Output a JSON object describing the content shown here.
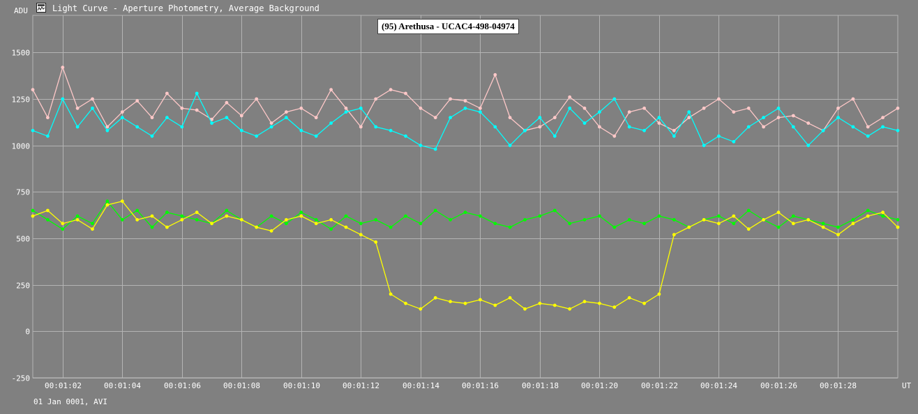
{
  "window": {
    "title": "Light Curve - Aperture Photometry, Average Background",
    "icon": "light-curve-icon"
  },
  "footer": {
    "date_format": "01 Jan 0001, AVI"
  },
  "chart_data": {
    "type": "line",
    "title": "(95) Arethusa - UCAC4-498-04974",
    "ylabel": "ADU",
    "xlabel": "UT",
    "ylim": [
      -250,
      1700
    ],
    "yticks": [
      1500,
      1250,
      1000,
      750,
      500,
      250,
      0,
      -250
    ],
    "xticks": [
      "00:01:02",
      "00:01:04",
      "00:01:06",
      "00:01:08",
      "00:01:10",
      "00:01:12",
      "00:01:14",
      "00:01:16",
      "00:01:18",
      "00:01:20",
      "00:01:22",
      "00:01:24",
      "00:01:26",
      "00:01:28"
    ],
    "xlim_seconds": [
      61.0,
      90.0
    ],
    "grid": true,
    "background": "#808080",
    "gridcolor": "#b4b4b4",
    "series": [
      {
        "color": "#ffc8c8",
        "x_seconds": [
          61.0,
          61.5,
          62.0,
          62.5,
          63.0,
          63.5,
          64.0,
          64.5,
          65.0,
          65.5,
          66.0,
          66.5,
          67.0,
          67.5,
          68.0,
          68.5,
          69.0,
          69.5,
          70.0,
          70.5,
          71.0,
          71.5,
          72.0,
          72.5,
          73.0,
          73.5,
          74.0,
          74.5,
          75.0,
          75.5,
          76.0,
          76.5,
          77.0,
          77.5,
          78.0,
          78.5,
          79.0,
          79.5,
          80.0,
          80.5,
          81.0,
          81.5,
          82.0,
          82.5,
          83.0,
          83.5,
          84.0,
          84.5,
          85.0,
          85.5,
          86.0,
          86.5,
          87.0,
          87.5,
          88.0,
          88.5,
          89.0,
          89.5,
          90.0
        ],
        "values": [
          1300,
          1150,
          1420,
          1200,
          1250,
          1100,
          1180,
          1240,
          1150,
          1280,
          1200,
          1190,
          1140,
          1230,
          1160,
          1250,
          1120,
          1180,
          1200,
          1150,
          1300,
          1200,
          1100,
          1250,
          1300,
          1280,
          1200,
          1150,
          1250,
          1240,
          1200,
          1380,
          1150,
          1080,
          1100,
          1150,
          1260,
          1200,
          1100,
          1050,
          1180,
          1200,
          1120,
          1080,
          1150,
          1200,
          1250,
          1180,
          1200,
          1100,
          1150,
          1160,
          1120,
          1080,
          1200,
          1250,
          1100,
          1150,
          1200
        ]
      },
      {
        "color": "#00ffff",
        "x_seconds": [
          61.0,
          61.5,
          62.0,
          62.5,
          63.0,
          63.5,
          64.0,
          64.5,
          65.0,
          65.5,
          66.0,
          66.5,
          67.0,
          67.5,
          68.0,
          68.5,
          69.0,
          69.5,
          70.0,
          70.5,
          71.0,
          71.5,
          72.0,
          72.5,
          73.0,
          73.5,
          74.0,
          74.5,
          75.0,
          75.5,
          76.0,
          76.5,
          77.0,
          77.5,
          78.0,
          78.5,
          79.0,
          79.5,
          80.0,
          80.5,
          81.0,
          81.5,
          82.0,
          82.5,
          83.0,
          83.5,
          84.0,
          84.5,
          85.0,
          85.5,
          86.0,
          86.5,
          87.0,
          87.5,
          88.0,
          88.5,
          89.0,
          89.5,
          90.0
        ],
        "values": [
          1080,
          1050,
          1250,
          1100,
          1200,
          1080,
          1150,
          1100,
          1050,
          1150,
          1100,
          1280,
          1120,
          1150,
          1080,
          1050,
          1100,
          1150,
          1080,
          1050,
          1120,
          1180,
          1200,
          1100,
          1080,
          1050,
          1000,
          980,
          1150,
          1200,
          1180,
          1100,
          1000,
          1080,
          1150,
          1050,
          1200,
          1120,
          1180,
          1250,
          1100,
          1080,
          1150,
          1050,
          1180,
          1000,
          1050,
          1020,
          1100,
          1150,
          1200,
          1100,
          1000,
          1080,
          1150,
          1100,
          1050,
          1100,
          1080
        ]
      },
      {
        "color": "#00ff00",
        "x_seconds": [
          61.0,
          61.5,
          62.0,
          62.5,
          63.0,
          63.5,
          64.0,
          64.5,
          65.0,
          65.5,
          66.0,
          66.5,
          67.0,
          67.5,
          68.0,
          68.5,
          69.0,
          69.5,
          70.0,
          70.5,
          71.0,
          71.5,
          72.0,
          72.5,
          73.0,
          73.5,
          74.0,
          74.5,
          75.0,
          75.5,
          76.0,
          76.5,
          77.0,
          77.5,
          78.0,
          78.5,
          79.0,
          79.5,
          80.0,
          80.5,
          81.0,
          81.5,
          82.0,
          82.5,
          83.0,
          83.5,
          84.0,
          84.5,
          85.0,
          85.5,
          86.0,
          86.5,
          87.0,
          87.5,
          88.0,
          88.5,
          89.0,
          89.5,
          90.0
        ],
        "values": [
          650,
          600,
          550,
          620,
          580,
          700,
          600,
          650,
          560,
          640,
          620,
          600,
          580,
          650,
          600,
          560,
          620,
          580,
          640,
          600,
          550,
          620,
          580,
          600,
          560,
          620,
          580,
          650,
          600,
          640,
          620,
          580,
          560,
          600,
          620,
          650,
          580,
          600,
          620,
          560,
          600,
          580,
          620,
          600,
          560,
          600,
          620,
          580,
          650,
          600,
          560,
          620,
          600,
          580,
          560,
          600,
          650,
          620,
          600
        ]
      },
      {
        "color": "#ffff00",
        "x_seconds": [
          61.0,
          61.5,
          62.0,
          62.5,
          63.0,
          63.5,
          64.0,
          64.5,
          65.0,
          65.5,
          66.0,
          66.5,
          67.0,
          67.5,
          68.0,
          68.5,
          69.0,
          69.5,
          70.0,
          70.5,
          71.0,
          71.5,
          72.0,
          72.5,
          73.0,
          73.5,
          74.0,
          74.5,
          75.0,
          75.5,
          76.0,
          76.5,
          77.0,
          77.5,
          78.0,
          78.5,
          79.0,
          79.5,
          80.0,
          80.5,
          81.0,
          81.5,
          82.0,
          82.5,
          83.0,
          83.5,
          84.0,
          84.5,
          85.0,
          85.5,
          86.0,
          86.5,
          87.0,
          87.5,
          88.0,
          88.5,
          89.0,
          89.5,
          90.0
        ],
        "values": [
          620,
          650,
          580,
          600,
          550,
          680,
          700,
          600,
          620,
          560,
          600,
          640,
          580,
          620,
          600,
          560,
          540,
          600,
          620,
          580,
          600,
          560,
          520,
          480,
          200,
          150,
          120,
          180,
          160,
          150,
          170,
          140,
          180,
          120,
          150,
          140,
          120,
          160,
          150,
          130,
          180,
          150,
          200,
          520,
          560,
          600,
          580,
          620,
          550,
          600,
          640,
          580,
          600,
          560,
          520,
          580,
          620,
          640,
          560
        ]
      }
    ]
  }
}
